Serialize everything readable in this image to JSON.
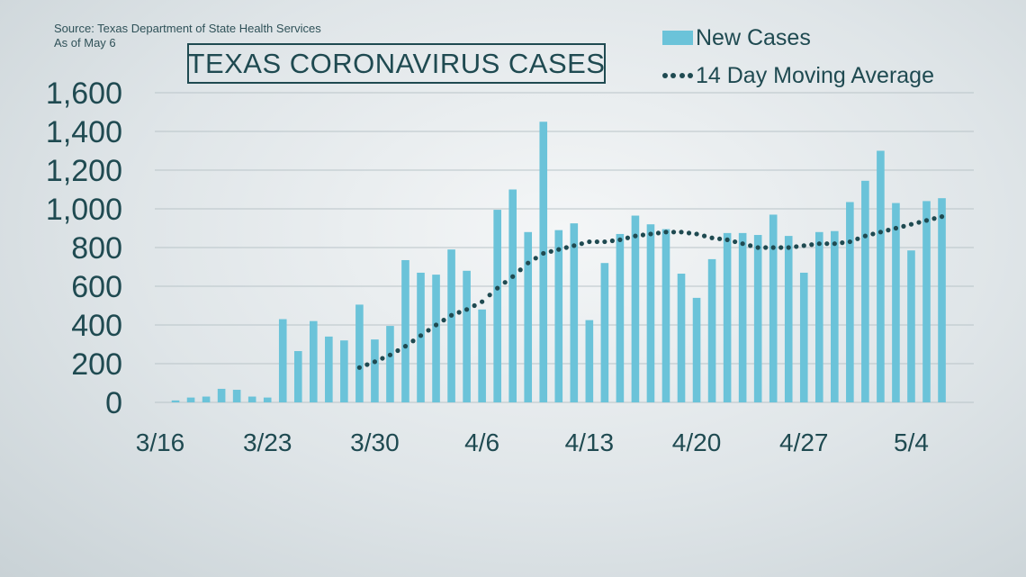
{
  "source": {
    "line1": "Source: Texas Department of State Health Services",
    "line2": "As of May 6"
  },
  "title": "TEXAS CORONAVIRUS CASES",
  "legend": {
    "bars": "New Cases",
    "line": "14 Day Moving Average"
  },
  "colors": {
    "bars": "#6bc3d9",
    "line": "#1f4a51",
    "text": "#1f4a51",
    "grid": "#b9c4c8"
  },
  "chart_data": {
    "type": "bar",
    "title": "TEXAS CORONAVIRUS CASES",
    "xlabel": "",
    "ylabel": "",
    "ylim": [
      0,
      1600
    ],
    "yticks": [
      0,
      200,
      400,
      600,
      800,
      1000,
      1200,
      1400,
      1600
    ],
    "ytick_labels": [
      "0",
      "200",
      "400",
      "600",
      "800",
      "1,000",
      "1,200",
      "1,400",
      "1,600"
    ],
    "xtick_labels": [
      "3/16",
      "3/23",
      "3/30",
      "4/6",
      "4/13",
      "4/20",
      "4/27",
      "5/4"
    ],
    "xtick_dates": [
      "3/16",
      "3/23",
      "3/30",
      "4/6",
      "4/13",
      "4/20",
      "4/27",
      "5/4"
    ],
    "grid": true,
    "legend_position": "top-right",
    "categories": [
      "3/16",
      "3/17",
      "3/18",
      "3/19",
      "3/20",
      "3/21",
      "3/22",
      "3/23",
      "3/24",
      "3/25",
      "3/26",
      "3/27",
      "3/28",
      "3/29",
      "3/30",
      "3/31",
      "4/1",
      "4/2",
      "4/3",
      "4/4",
      "4/5",
      "4/6",
      "4/7",
      "4/8",
      "4/9",
      "4/10",
      "4/11",
      "4/12",
      "4/13",
      "4/14",
      "4/15",
      "4/16",
      "4/17",
      "4/18",
      "4/19",
      "4/20",
      "4/21",
      "4/22",
      "4/23",
      "4/24",
      "4/25",
      "4/26",
      "4/27",
      "4/28",
      "4/29",
      "4/30",
      "5/1",
      "5/2",
      "5/3",
      "5/4",
      "5/5",
      "5/6"
    ],
    "series": [
      {
        "name": "New Cases",
        "type": "bar",
        "values": [
          0,
          10,
          25,
          30,
          70,
          65,
          30,
          25,
          430,
          265,
          420,
          340,
          320,
          505,
          325,
          395,
          735,
          670,
          660,
          790,
          680,
          480,
          995,
          1100,
          880,
          1450,
          890,
          925,
          425,
          720,
          870,
          965,
          920,
          895,
          665,
          540,
          740,
          875,
          875,
          865,
          970,
          860,
          670,
          880,
          885,
          1035,
          1145,
          1300,
          1030,
          785,
          1040,
          1055
        ]
      },
      {
        "name": "14 Day Moving Average",
        "type": "line",
        "values": [
          null,
          null,
          null,
          null,
          null,
          null,
          null,
          null,
          null,
          null,
          null,
          null,
          null,
          180,
          210,
          245,
          290,
          345,
          400,
          450,
          480,
          520,
          590,
          650,
          720,
          770,
          790,
          810,
          830,
          830,
          840,
          860,
          870,
          880,
          880,
          870,
          850,
          840,
          820,
          800,
          800,
          800,
          810,
          820,
          820,
          830,
          860,
          880,
          900,
          920,
          940,
          960
        ]
      }
    ]
  }
}
